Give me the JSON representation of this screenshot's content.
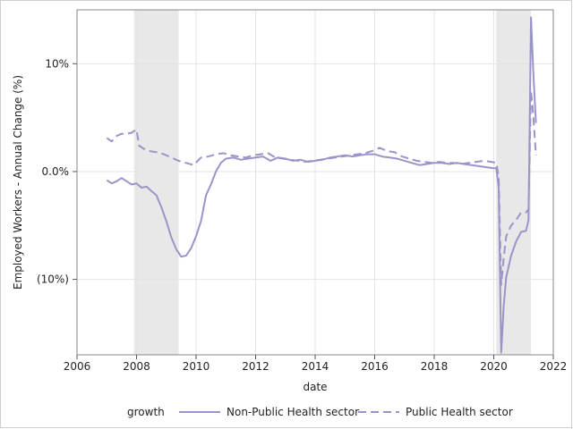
{
  "chart_data": {
    "type": "line",
    "xlabel": "date",
    "ylabel": "Employed Workers - Annual Change (%)",
    "xlim": [
      "2006-01-01",
      "2022-01-01"
    ],
    "ylim": [
      -17,
      15
    ],
    "x_ticks": [
      "2006",
      "2008",
      "2010",
      "2012",
      "2014",
      "2016",
      "2018",
      "2020",
      "2022"
    ],
    "y_ticks": [
      {
        "value": 10,
        "label": "10%"
      },
      {
        "value": 0,
        "label": "0.0%"
      },
      {
        "value": -10,
        "label": "(10%)"
      }
    ],
    "grid": true,
    "legend": {
      "position": "bottom",
      "title": "growth",
      "entries": [
        "Non-Public Health sector",
        "Public Health sector"
      ]
    },
    "recession_bands": [
      {
        "start": "2007-12-01",
        "end": "2009-06-01"
      },
      {
        "start": "2020-02-01",
        "end": "2021-04-01"
      }
    ],
    "series": [
      {
        "name": "Non-Public Health sector",
        "style": "solid",
        "color": "#9a95c8",
        "points": [
          [
            "2007-01",
            -0.8
          ],
          [
            "2007-03",
            -1.1
          ],
          [
            "2007-05",
            -0.9
          ],
          [
            "2007-07",
            -0.6
          ],
          [
            "2007-09",
            -0.9
          ],
          [
            "2007-11",
            -1.2
          ],
          [
            "2008-01",
            -1.1
          ],
          [
            "2008-03",
            -1.5
          ],
          [
            "2008-05",
            -1.4
          ],
          [
            "2008-07",
            -1.8
          ],
          [
            "2008-09",
            -2.2
          ],
          [
            "2008-11",
            -3.3
          ],
          [
            "2009-01",
            -4.6
          ],
          [
            "2009-03",
            -6.1
          ],
          [
            "2009-05",
            -7.2
          ],
          [
            "2009-07",
            -7.9
          ],
          [
            "2009-09",
            -7.8
          ],
          [
            "2009-11",
            -7.1
          ],
          [
            "2010-01",
            -6.0
          ],
          [
            "2010-03",
            -4.6
          ],
          [
            "2010-05",
            -2.2
          ],
          [
            "2010-07",
            -1.2
          ],
          [
            "2010-09",
            0.0
          ],
          [
            "2010-11",
            0.8
          ],
          [
            "2011-01",
            1.2
          ],
          [
            "2011-04",
            1.3
          ],
          [
            "2011-07",
            1.1
          ],
          [
            "2011-10",
            1.2
          ],
          [
            "2012-01",
            1.3
          ],
          [
            "2012-04",
            1.4
          ],
          [
            "2012-07",
            1.0
          ],
          [
            "2012-10",
            1.3
          ],
          [
            "2013-01",
            1.2
          ],
          [
            "2013-04",
            1.0
          ],
          [
            "2013-07",
            1.1
          ],
          [
            "2013-10",
            0.9
          ],
          [
            "2014-01",
            1.0
          ],
          [
            "2014-04",
            1.1
          ],
          [
            "2014-07",
            1.3
          ],
          [
            "2014-10",
            1.4
          ],
          [
            "2015-01",
            1.5
          ],
          [
            "2015-04",
            1.4
          ],
          [
            "2015-07",
            1.5
          ],
          [
            "2015-10",
            1.6
          ],
          [
            "2016-01",
            1.6
          ],
          [
            "2016-04",
            1.4
          ],
          [
            "2016-07",
            1.3
          ],
          [
            "2016-10",
            1.2
          ],
          [
            "2017-01",
            1.0
          ],
          [
            "2017-04",
            0.8
          ],
          [
            "2017-07",
            0.6
          ],
          [
            "2017-10",
            0.7
          ],
          [
            "2018-01",
            0.8
          ],
          [
            "2018-04",
            0.8
          ],
          [
            "2018-07",
            0.7
          ],
          [
            "2018-10",
            0.8
          ],
          [
            "2019-01",
            0.7
          ],
          [
            "2019-04",
            0.6
          ],
          [
            "2019-07",
            0.5
          ],
          [
            "2019-10",
            0.4
          ],
          [
            "2020-01",
            0.3
          ],
          [
            "2020-02",
            0.3
          ],
          [
            "2020-03",
            -1.5
          ],
          [
            "2020-04",
            -16.8
          ],
          [
            "2020-05",
            -12.5
          ],
          [
            "2020-06",
            -9.8
          ],
          [
            "2020-08",
            -7.8
          ],
          [
            "2020-10",
            -6.5
          ],
          [
            "2020-12",
            -5.6
          ],
          [
            "2021-02",
            -5.5
          ],
          [
            "2021-03",
            -4.5
          ],
          [
            "2021-04",
            14.3
          ],
          [
            "2021-05",
            9.0
          ],
          [
            "2021-06",
            4.5
          ]
        ]
      },
      {
        "name": "Public Health sector",
        "style": "dashed",
        "color": "#9a95c8",
        "points": [
          [
            "2007-01",
            3.1
          ],
          [
            "2007-03",
            2.8
          ],
          [
            "2007-05",
            3.3
          ],
          [
            "2007-07",
            3.5
          ],
          [
            "2007-09",
            3.5
          ],
          [
            "2007-11",
            3.6
          ],
          [
            "2008-01",
            3.9
          ],
          [
            "2008-02",
            2.4
          ],
          [
            "2008-04",
            2.1
          ],
          [
            "2008-06",
            1.9
          ],
          [
            "2008-09",
            1.8
          ],
          [
            "2008-12",
            1.6
          ],
          [
            "2009-03",
            1.3
          ],
          [
            "2009-06",
            1.0
          ],
          [
            "2009-09",
            0.8
          ],
          [
            "2009-12",
            0.6
          ],
          [
            "2010-03",
            1.3
          ],
          [
            "2010-06",
            1.4
          ],
          [
            "2010-09",
            1.6
          ],
          [
            "2010-12",
            1.7
          ],
          [
            "2011-03",
            1.5
          ],
          [
            "2011-06",
            1.4
          ],
          [
            "2011-09",
            1.3
          ],
          [
            "2011-12",
            1.5
          ],
          [
            "2012-03",
            1.6
          ],
          [
            "2012-06",
            1.7
          ],
          [
            "2012-09",
            1.3
          ],
          [
            "2012-12",
            1.2
          ],
          [
            "2013-03",
            1.1
          ],
          [
            "2013-06",
            1.0
          ],
          [
            "2013-09",
            0.9
          ],
          [
            "2013-12",
            1.0
          ],
          [
            "2014-03",
            1.1
          ],
          [
            "2014-06",
            1.2
          ],
          [
            "2014-09",
            1.3
          ],
          [
            "2014-12",
            1.4
          ],
          [
            "2015-03",
            1.5
          ],
          [
            "2015-06",
            1.6
          ],
          [
            "2015-09",
            1.7
          ],
          [
            "2015-12",
            1.9
          ],
          [
            "2016-03",
            2.2
          ],
          [
            "2016-06",
            1.9
          ],
          [
            "2016-09",
            1.8
          ],
          [
            "2016-12",
            1.4
          ],
          [
            "2017-03",
            1.2
          ],
          [
            "2017-06",
            1.0
          ],
          [
            "2017-09",
            0.9
          ],
          [
            "2017-12",
            0.8
          ],
          [
            "2018-03",
            0.9
          ],
          [
            "2018-06",
            0.8
          ],
          [
            "2018-09",
            0.8
          ],
          [
            "2018-12",
            0.7
          ],
          [
            "2019-03",
            0.8
          ],
          [
            "2019-06",
            0.9
          ],
          [
            "2019-09",
            1.0
          ],
          [
            "2019-12",
            0.9
          ],
          [
            "2020-02",
            0.8
          ],
          [
            "2020-03",
            -0.5
          ],
          [
            "2020-04",
            -10.5
          ],
          [
            "2020-05",
            -8.0
          ],
          [
            "2020-06",
            -6.0
          ],
          [
            "2020-08",
            -5.0
          ],
          [
            "2020-10",
            -4.5
          ],
          [
            "2020-12",
            -3.8
          ],
          [
            "2021-02",
            -3.8
          ],
          [
            "2021-03",
            -3.5
          ],
          [
            "2021-04",
            7.5
          ],
          [
            "2021-05",
            5.0
          ],
          [
            "2021-06",
            1.5
          ]
        ]
      }
    ]
  },
  "colors": {
    "line": "#9a95c8",
    "band": "#e8e8e8",
    "grid": "#e4e4e4",
    "axis": "#555555"
  }
}
